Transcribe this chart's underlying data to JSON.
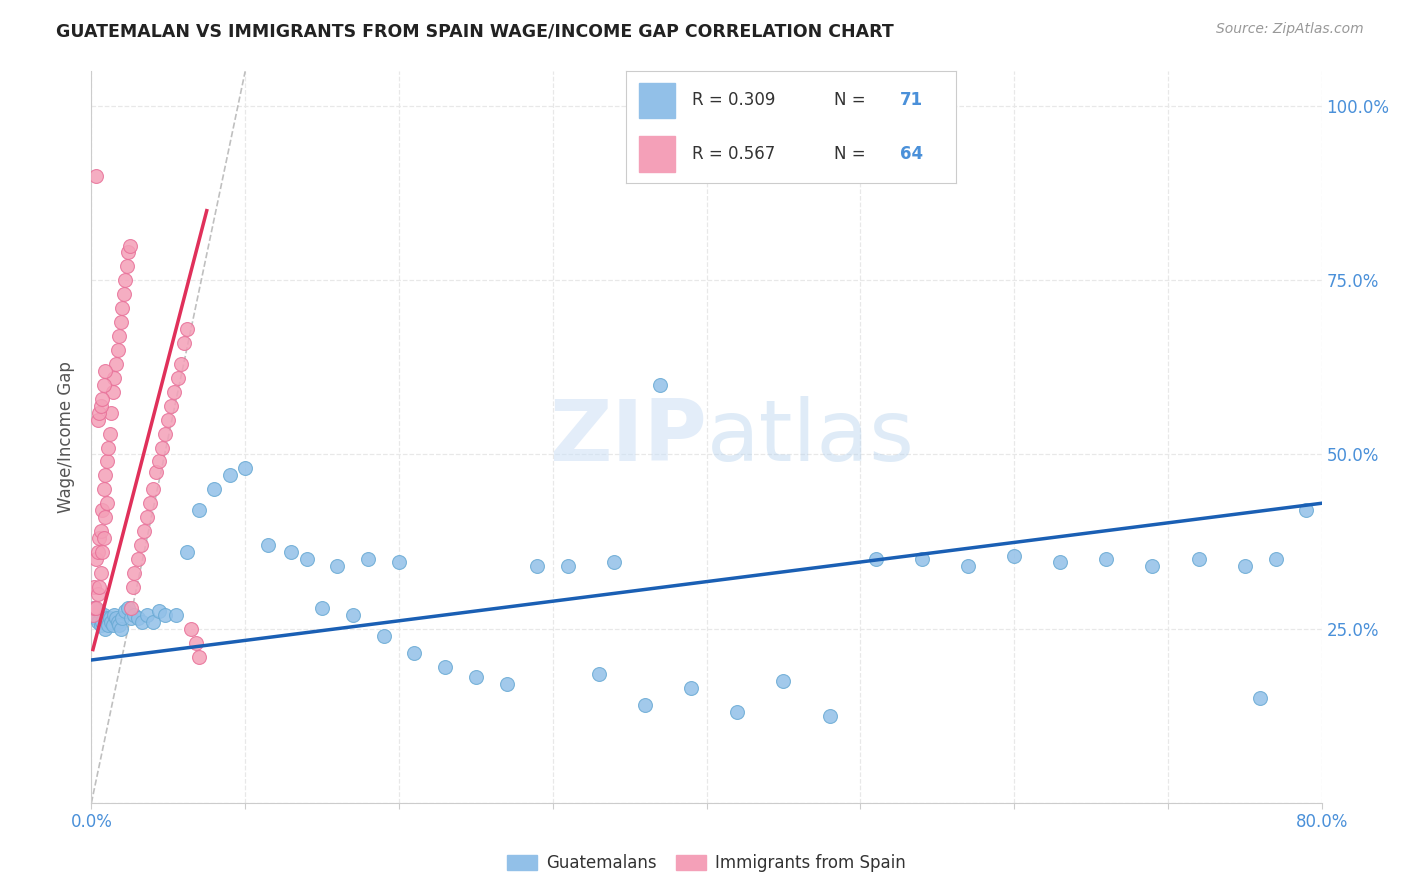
{
  "title": "GUATEMALAN VS IMMIGRANTS FROM SPAIN WAGE/INCOME GAP CORRELATION CHART",
  "source": "Source: ZipAtlas.com",
  "ylabel": "Wage/Income Gap",
  "watermark_zip": "ZIP",
  "watermark_atlas": "atlas",
  "legend_blue_r": "R = 0.309",
  "legend_blue_n": "71",
  "legend_pink_r": "R = 0.567",
  "legend_pink_n": "64",
  "legend_label_blue": "Guatemalans",
  "legend_label_pink": "Immigrants from Spain",
  "blue_scatter_x": [
    0.001,
    0.002,
    0.003,
    0.004,
    0.005,
    0.006,
    0.007,
    0.008,
    0.009,
    0.01,
    0.011,
    0.012,
    0.013,
    0.014,
    0.015,
    0.016,
    0.017,
    0.018,
    0.019,
    0.02,
    0.022,
    0.024,
    0.026,
    0.028,
    0.03,
    0.033,
    0.036,
    0.04,
    0.044,
    0.048,
    0.055,
    0.062,
    0.07,
    0.08,
    0.09,
    0.1,
    0.115,
    0.13,
    0.15,
    0.17,
    0.19,
    0.21,
    0.23,
    0.25,
    0.27,
    0.29,
    0.31,
    0.33,
    0.36,
    0.39,
    0.42,
    0.45,
    0.48,
    0.51,
    0.54,
    0.57,
    0.6,
    0.63,
    0.66,
    0.69,
    0.72,
    0.75,
    0.77,
    0.79,
    0.14,
    0.16,
    0.18,
    0.2,
    0.34,
    0.37,
    0.76
  ],
  "blue_scatter_y": [
    0.27,
    0.28,
    0.265,
    0.26,
    0.275,
    0.255,
    0.26,
    0.27,
    0.25,
    0.265,
    0.255,
    0.265,
    0.26,
    0.255,
    0.27,
    0.265,
    0.26,
    0.255,
    0.25,
    0.265,
    0.275,
    0.28,
    0.265,
    0.27,
    0.265,
    0.26,
    0.27,
    0.26,
    0.275,
    0.27,
    0.27,
    0.36,
    0.42,
    0.45,
    0.47,
    0.48,
    0.37,
    0.36,
    0.28,
    0.27,
    0.24,
    0.215,
    0.195,
    0.18,
    0.17,
    0.34,
    0.34,
    0.185,
    0.14,
    0.165,
    0.13,
    0.175,
    0.125,
    0.35,
    0.35,
    0.34,
    0.355,
    0.345,
    0.35,
    0.34,
    0.35,
    0.34,
    0.35,
    0.42,
    0.35,
    0.34,
    0.35,
    0.345,
    0.345,
    0.6,
    0.15
  ],
  "pink_scatter_x": [
    0.001,
    0.002,
    0.002,
    0.003,
    0.003,
    0.004,
    0.004,
    0.005,
    0.005,
    0.006,
    0.006,
    0.007,
    0.007,
    0.008,
    0.008,
    0.009,
    0.009,
    0.01,
    0.01,
    0.011,
    0.012,
    0.013,
    0.014,
    0.015,
    0.016,
    0.017,
    0.018,
    0.019,
    0.02,
    0.021,
    0.022,
    0.023,
    0.024,
    0.025,
    0.026,
    0.027,
    0.028,
    0.03,
    0.032,
    0.034,
    0.036,
    0.038,
    0.04,
    0.042,
    0.044,
    0.046,
    0.048,
    0.05,
    0.052,
    0.054,
    0.056,
    0.058,
    0.06,
    0.062,
    0.065,
    0.068,
    0.07,
    0.004,
    0.005,
    0.006,
    0.007,
    0.008,
    0.003,
    0.009
  ],
  "pink_scatter_y": [
    0.27,
    0.31,
    0.28,
    0.35,
    0.28,
    0.36,
    0.3,
    0.38,
    0.31,
    0.39,
    0.33,
    0.42,
    0.36,
    0.45,
    0.38,
    0.47,
    0.41,
    0.49,
    0.43,
    0.51,
    0.53,
    0.56,
    0.59,
    0.61,
    0.63,
    0.65,
    0.67,
    0.69,
    0.71,
    0.73,
    0.75,
    0.77,
    0.79,
    0.8,
    0.28,
    0.31,
    0.33,
    0.35,
    0.37,
    0.39,
    0.41,
    0.43,
    0.45,
    0.475,
    0.49,
    0.51,
    0.53,
    0.55,
    0.57,
    0.59,
    0.61,
    0.63,
    0.66,
    0.68,
    0.25,
    0.23,
    0.21,
    0.55,
    0.56,
    0.57,
    0.58,
    0.6,
    0.9,
    0.62
  ],
  "blue_line_x": [
    0.0,
    0.8
  ],
  "blue_line_y": [
    0.205,
    0.43
  ],
  "pink_line_x": [
    0.001,
    0.075
  ],
  "pink_line_y": [
    0.22,
    0.85
  ],
  "diag_line_x": [
    0.0,
    0.1
  ],
  "diag_line_y": [
    0.0,
    1.05
  ],
  "blue_color": "#92c0e8",
  "blue_edge_color": "#6aaad4",
  "pink_color": "#f4a0b8",
  "pink_edge_color": "#e87098",
  "blue_line_color": "#1a5fb4",
  "pink_line_color": "#e0305a",
  "diag_line_color": "#b0b0b0",
  "grid_color": "#e8e8e8",
  "right_axis_color": "#4a90d9",
  "title_color": "#222222",
  "background_color": "#ffffff",
  "xmin": 0.0,
  "xmax": 0.8,
  "ymin": 0.0,
  "ymax": 1.05
}
